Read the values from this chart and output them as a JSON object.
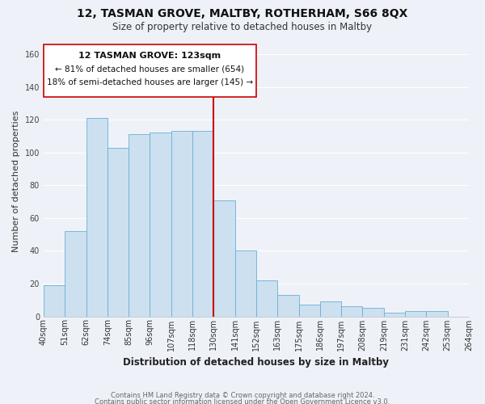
{
  "title": "12, TASMAN GROVE, MALTBY, ROTHERHAM, S66 8QX",
  "subtitle": "Size of property relative to detached houses in Maltby",
  "xlabel": "Distribution of detached houses by size in Maltby",
  "ylabel": "Number of detached properties",
  "bar_color": "#cce0f0",
  "bar_edge_color": "#6aafd6",
  "bins": [
    "40sqm",
    "51sqm",
    "62sqm",
    "74sqm",
    "85sqm",
    "96sqm",
    "107sqm",
    "118sqm",
    "130sqm",
    "141sqm",
    "152sqm",
    "163sqm",
    "175sqm",
    "186sqm",
    "197sqm",
    "208sqm",
    "219sqm",
    "231sqm",
    "242sqm",
    "253sqm",
    "264sqm"
  ],
  "values": [
    19,
    52,
    121,
    103,
    111,
    112,
    113,
    113,
    71,
    40,
    22,
    13,
    7,
    9,
    6,
    5,
    2,
    3,
    3,
    0
  ],
  "ylim": [
    0,
    165
  ],
  "yticks": [
    0,
    20,
    40,
    60,
    80,
    100,
    120,
    140,
    160
  ],
  "vline_color": "#cc0000",
  "annotation_title": "12 TASMAN GROVE: 123sqm",
  "annotation_line1": "← 81% of detached houses are smaller (654)",
  "annotation_line2": "18% of semi-detached houses are larger (145) →",
  "annotation_box_color": "#ffffff",
  "annotation_box_edge": "#cc0000",
  "footer1": "Contains HM Land Registry data © Crown copyright and database right 2024.",
  "footer2": "Contains public sector information licensed under the Open Government Licence v3.0.",
  "background_color": "#eef2f8",
  "grid_color": "#ffffff",
  "title_fontsize": 10,
  "subtitle_fontsize": 8.5,
  "ylabel_fontsize": 8,
  "xlabel_fontsize": 8.5,
  "tick_fontsize": 7,
  "footer_fontsize": 6,
  "annot_title_fontsize": 8,
  "annot_body_fontsize": 7.5
}
